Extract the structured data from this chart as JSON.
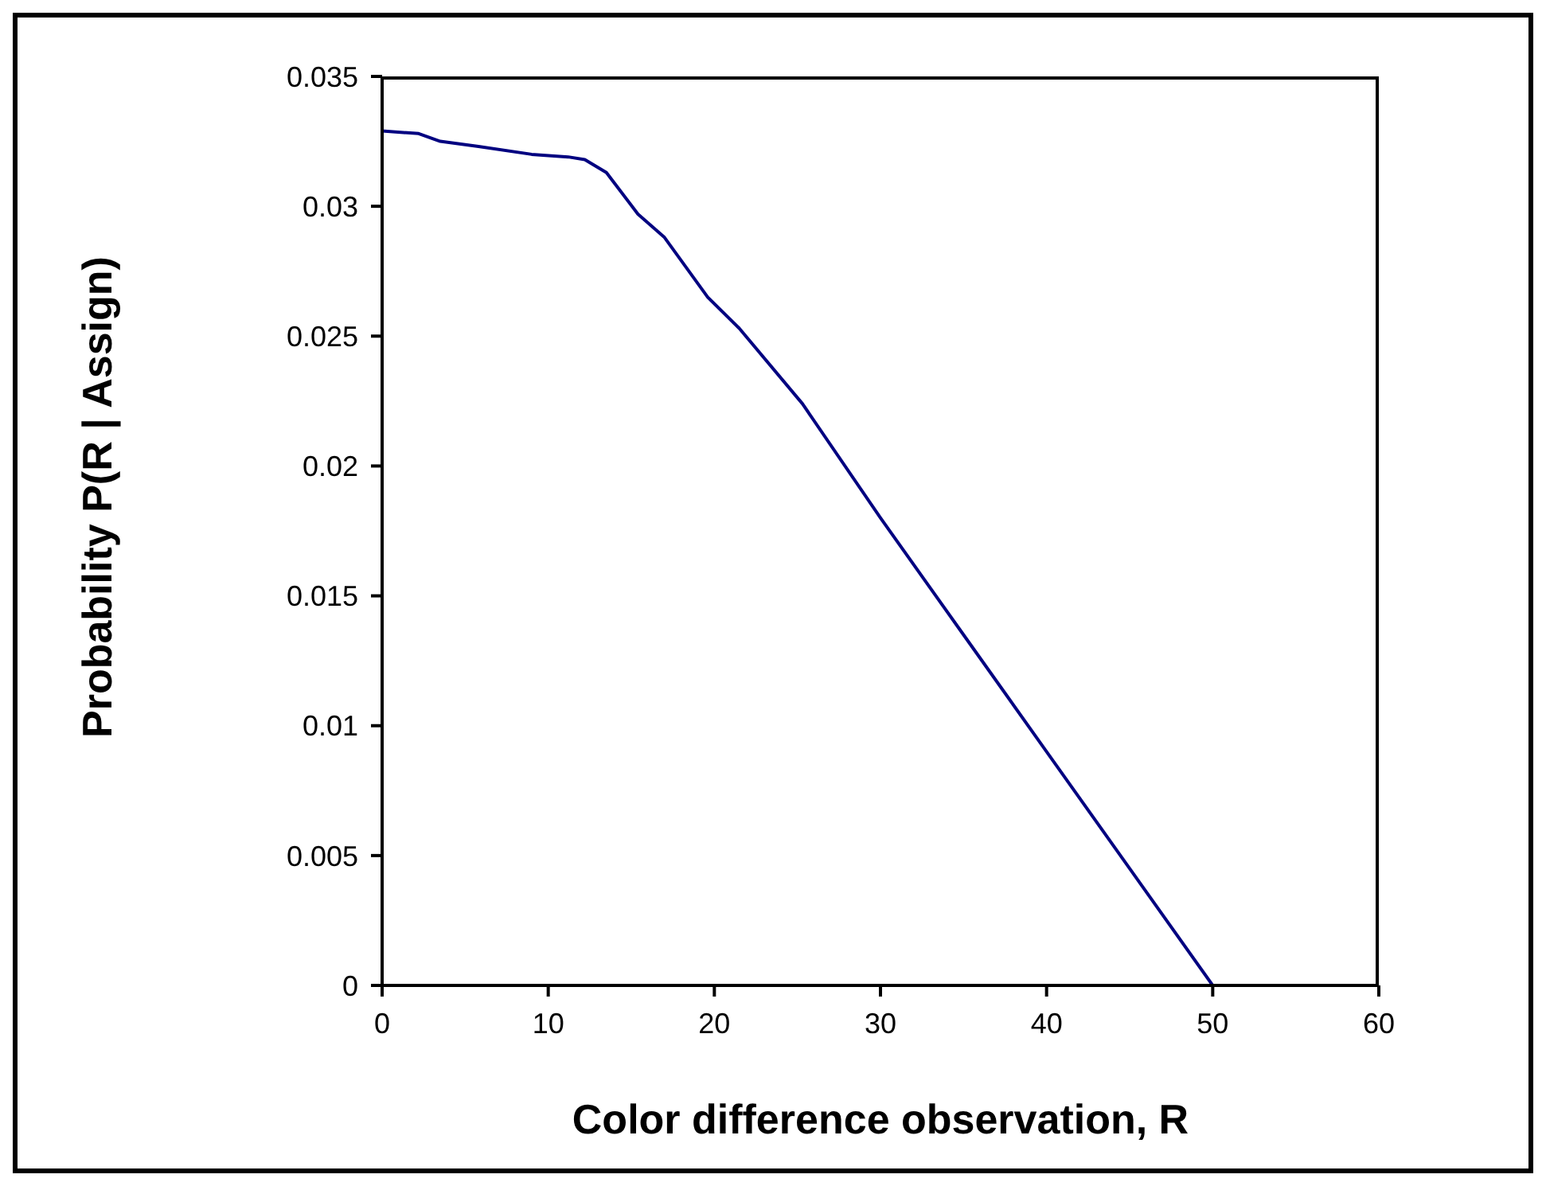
{
  "chart_data": {
    "type": "line",
    "xlabel": "Color difference observation, R",
    "ylabel": "Probability P(R | Assign)",
    "x": [
      0,
      2.2,
      3.5,
      5.8,
      9,
      11.2,
      12.2,
      13.5,
      15.4,
      17,
      19.6,
      21.5,
      25.3,
      30,
      35,
      40,
      45,
      50,
      55,
      60
    ],
    "series": [
      {
        "color": "#000080",
        "values": [
          0.0329,
          0.0328,
          0.0325,
          0.0323,
          0.032,
          0.0319,
          0.0318,
          0.0313,
          0.0297,
          0.0288,
          0.0265,
          0.0253,
          0.0224,
          0.018,
          0.0135,
          0.009,
          0.0045,
          0,
          0,
          0
        ]
      }
    ],
    "xlim": [
      0,
      60
    ],
    "xticks": [
      0,
      10,
      20,
      30,
      40,
      50,
      60
    ],
    "ylim": [
      0,
      0.035
    ],
    "yticks": [
      0,
      0.005,
      0.01,
      0.015,
      0.02,
      0.025,
      0.03,
      0.035
    ],
    "grid": false,
    "legend": false,
    "marker": "none",
    "line_style": "solid"
  }
}
